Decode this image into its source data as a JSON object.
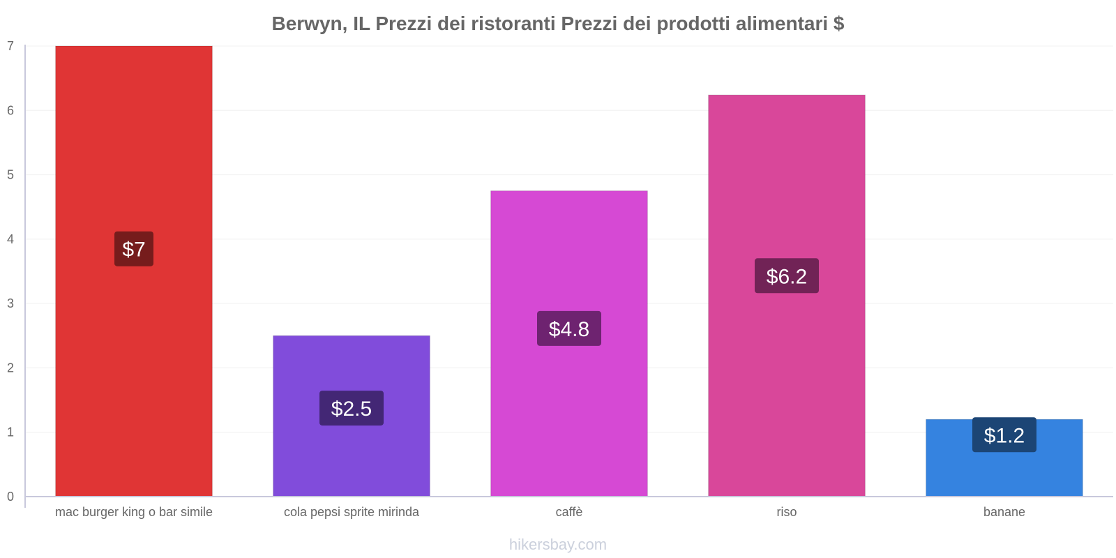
{
  "chart_data": {
    "type": "bar",
    "title": "Berwyn, IL Prezzi dei ristoranti Prezzi dei prodotti alimentari $",
    "categories": [
      "mac burger king o bar simile",
      "cola pepsi sprite mirinda",
      "caffè",
      "riso",
      "banane"
    ],
    "values": [
      7.0,
      2.5,
      4.75,
      6.24,
      1.2
    ],
    "data_labels": [
      "$7",
      "$2.5",
      "$4.8",
      "$6.2",
      "$1.2"
    ],
    "bar_colors": [
      "#e03535",
      "#814cdb",
      "#d649d4",
      "#d9479a",
      "#3583e0"
    ],
    "label_box_colors": [
      "#761c1c",
      "#432775",
      "#6e2370",
      "#712356",
      "#1c4575"
    ],
    "ylim": [
      0,
      7
    ],
    "yticks": [
      "0",
      "1",
      "2",
      "3",
      "4",
      "5",
      "6",
      "7"
    ],
    "xlabel": "",
    "ylabel": "",
    "grid": true
  },
  "watermark": "hikersbay.com"
}
